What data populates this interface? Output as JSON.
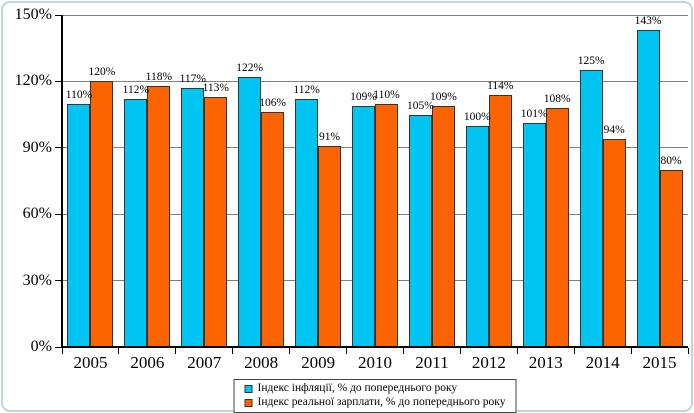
{
  "chart_data": {
    "type": "bar",
    "categories": [
      "2005",
      "2006",
      "2007",
      "2008",
      "2009",
      "2010",
      "2011",
      "2012",
      "2013",
      "2014",
      "2015"
    ],
    "series": [
      {
        "name": "Індекс інфляції, % до попереднього року",
        "color": "#00C4F2",
        "values": [
          110,
          112,
          117,
          122,
          112,
          109,
          105,
          100,
          101,
          125,
          143
        ]
      },
      {
        "name": "Індекс реальної зарплати, % до попереднього року",
        "color": "#FB6400",
        "values": [
          120,
          118,
          113,
          106,
          91,
          110,
          109,
          114,
          108,
          94,
          80
        ]
      }
    ],
    "title": "",
    "xlabel": "",
    "ylabel": "",
    "ylim": [
      0,
      150
    ],
    "ytick_step": 30,
    "ytick_labels": [
      "0%",
      "30%",
      "60%",
      "90%",
      "120%",
      "150%"
    ],
    "data_label_suffix": "%",
    "grid": true,
    "legend_position": "bottom-center"
  },
  "colors": {
    "gridline": "#808080",
    "axis": "#000000",
    "bar_border": "#333333",
    "frame_border": "#C1D3DD",
    "background": "#FFFFFF",
    "text": "#000000"
  }
}
